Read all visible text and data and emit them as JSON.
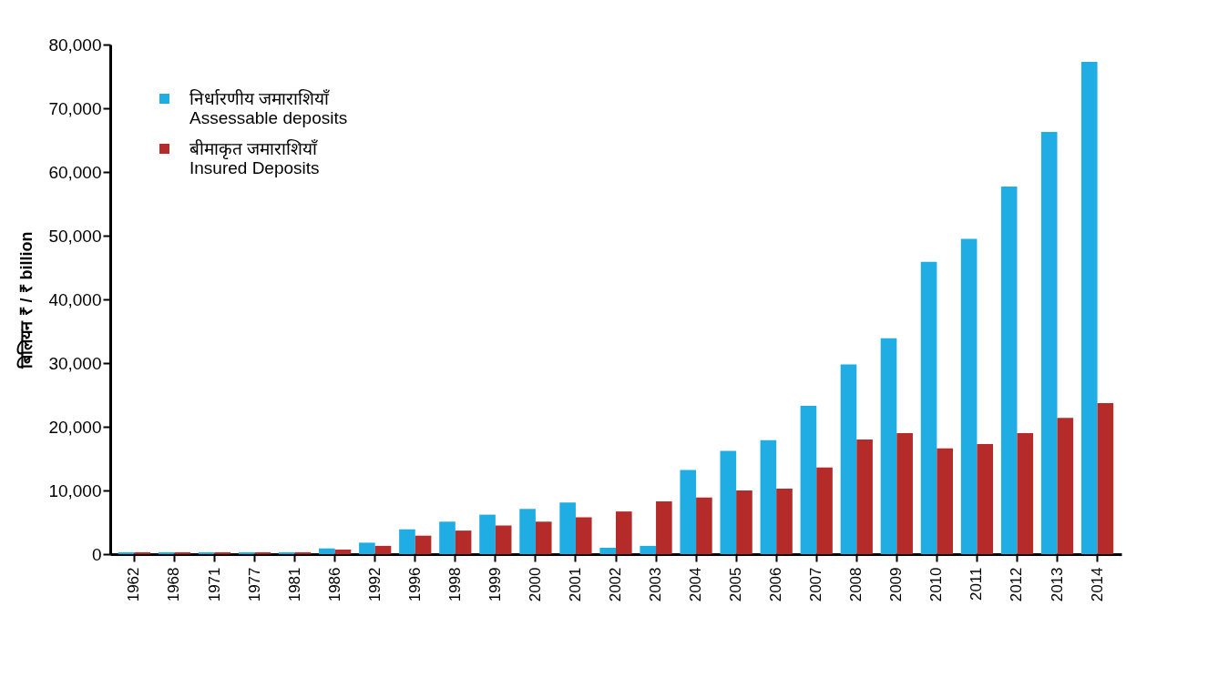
{
  "chart_data": {
    "type": "bar",
    "ylabel": "बिलियन ₹ / ₹ billion",
    "categories": [
      "1962",
      "1968",
      "1971",
      "1977",
      "1981",
      "1986",
      "1992",
      "1996",
      "1998",
      "1999",
      "2000",
      "2001",
      "2002",
      "2003",
      "2004",
      "2005",
      "2006",
      "2007",
      "2008",
      "2009",
      "2010",
      "2011",
      "2012",
      "2013",
      "2014"
    ],
    "series": [
      {
        "name": "निर्धारणीय जमाराशियाँ\nAssessable deposits",
        "color": "#1fade3",
        "values": [
          300,
          300,
          300,
          300,
          300,
          900,
          1800,
          3900,
          5100,
          6200,
          7100,
          8100,
          1000,
          1300,
          13200,
          16200,
          17900,
          23300,
          29800,
          33900,
          45900,
          49500,
          57700,
          66300,
          77300
        ]
      },
      {
        "name": "बीमाकृत जमाराशियाँ\nInsured Deposits",
        "color": "#b52b29",
        "values": [
          300,
          300,
          300,
          300,
          300,
          700,
          1300,
          2900,
          3700,
          4500,
          5100,
          5800,
          6700,
          8300,
          8900,
          10000,
          10300,
          13600,
          18000,
          19000,
          16600,
          17300,
          19000,
          21400,
          23700
        ]
      }
    ],
    "ylim": [
      0,
      80000
    ],
    "yticks": [
      0,
      {
        "value": 10000,
        "label": "10,000"
      },
      {
        "value": 20000,
        "label": "20,000"
      },
      {
        "value": 30000,
        "label": "30,000"
      },
      {
        "value": 40000,
        "label": "40,000"
      },
      {
        "value": 50000,
        "label": "50,000"
      },
      {
        "value": 60000,
        "label": "60,000"
      },
      {
        "value": 70000,
        "label": "70,000"
      },
      {
        "value": 80000,
        "label": "80,000"
      }
    ],
    "grid": false,
    "legend": "top left"
  }
}
